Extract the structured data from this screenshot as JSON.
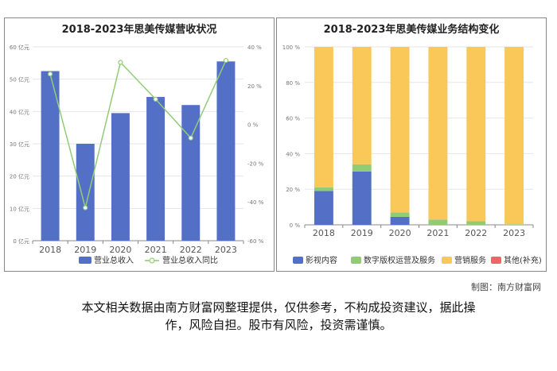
{
  "credit": "制图：南方财富网",
  "disclaimer": {
    "line1": "本文相关数据由南方财富网整理提供，仅供参考，不构成投资建议，据此操",
    "line2": "作，风险自担。股市有风险，投资需谨慎。"
  },
  "colors": {
    "blue": "#5470c6",
    "green": "#91cc75",
    "yellow": "#fac858",
    "red": "#ee6666",
    "grid": "#e6e6e6",
    "axis": "#888888"
  },
  "chart_data": [
    {
      "type": "bar",
      "title": "2018-2023年思美传媒营收状况",
      "categories": [
        "2018",
        "2019",
        "2020",
        "2021",
        "2022",
        "2023"
      ],
      "series": [
        {
          "name": "营业总收入",
          "type": "bar",
          "axis": "left",
          "values": [
            52.5,
            30,
            39.5,
            44.5,
            42,
            55.5
          ]
        },
        {
          "name": "营业总收入同比",
          "type": "line",
          "axis": "right",
          "values": [
            26,
            -43,
            32,
            13,
            -7,
            33
          ]
        }
      ],
      "y_left": {
        "ticks": [
          "0 亿元",
          "10 亿元",
          "20 亿元",
          "30 亿元",
          "40 亿元",
          "50 亿元",
          "60 亿元"
        ],
        "ylim": [
          0,
          60
        ]
      },
      "y_right": {
        "ticks": [
          "-60 %",
          "-40 %",
          "-20 %",
          "0 %",
          "20 %",
          "40 %"
        ],
        "ylim": [
          -60,
          40
        ]
      },
      "legend": "bottom",
      "grid": true
    },
    {
      "type": "bar",
      "stacked": true,
      "title": "2018-2023年思美传媒业务结构变化",
      "categories": [
        "2018",
        "2019",
        "2020",
        "2021",
        "2022",
        "2023"
      ],
      "series": [
        {
          "name": "影视内容",
          "values": [
            19,
            30,
            4.5,
            0,
            0,
            0
          ]
        },
        {
          "name": "数字版权运营及服务",
          "values": [
            2,
            4,
            2.5,
            3,
            2,
            0.3
          ]
        },
        {
          "name": "营销服务",
          "values": [
            79,
            66,
            93,
            97,
            98,
            99.7
          ]
        },
        {
          "name": "其他(补充)",
          "values": [
            0,
            0,
            0,
            0,
            0,
            0
          ]
        }
      ],
      "y_ticks": [
        "0 %",
        "20 %",
        "40 %",
        "60 %",
        "80 %",
        "100 %"
      ],
      "ylim": [
        0,
        100
      ],
      "legend": "bottom",
      "grid": true
    }
  ]
}
